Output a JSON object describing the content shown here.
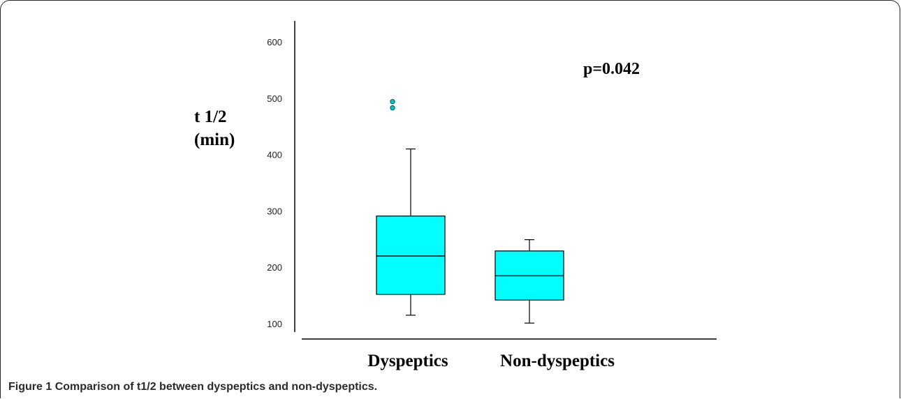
{
  "chart_data": {
    "type": "box",
    "ylabel_lines": [
      "t 1/2",
      "(min)"
    ],
    "ylim": [
      100,
      600
    ],
    "yticks": [
      100,
      200,
      300,
      400,
      500,
      600
    ],
    "categories": [
      "Dyspeptics",
      "Non-dyspeptics"
    ],
    "boxes": [
      {
        "category": "Dyspeptics",
        "whisker_low": 115,
        "q1": 152,
        "median": 220,
        "q3": 291,
        "whisker_high": 410,
        "outliers": [
          483,
          494
        ]
      },
      {
        "category": "Non-dyspeptics",
        "whisker_low": 101,
        "q1": 142,
        "median": 185,
        "q3": 229,
        "whisker_high": 249,
        "outliers": []
      }
    ],
    "annotation": "p=0.042",
    "colors": {
      "box_fill": "#00FFFF",
      "outlier": "#00C8C8",
      "line": "#000000"
    }
  },
  "caption": {
    "label": "Figure 1",
    "text": "Comparison of t1/2 between dyspeptics and non-dyspeptics."
  }
}
